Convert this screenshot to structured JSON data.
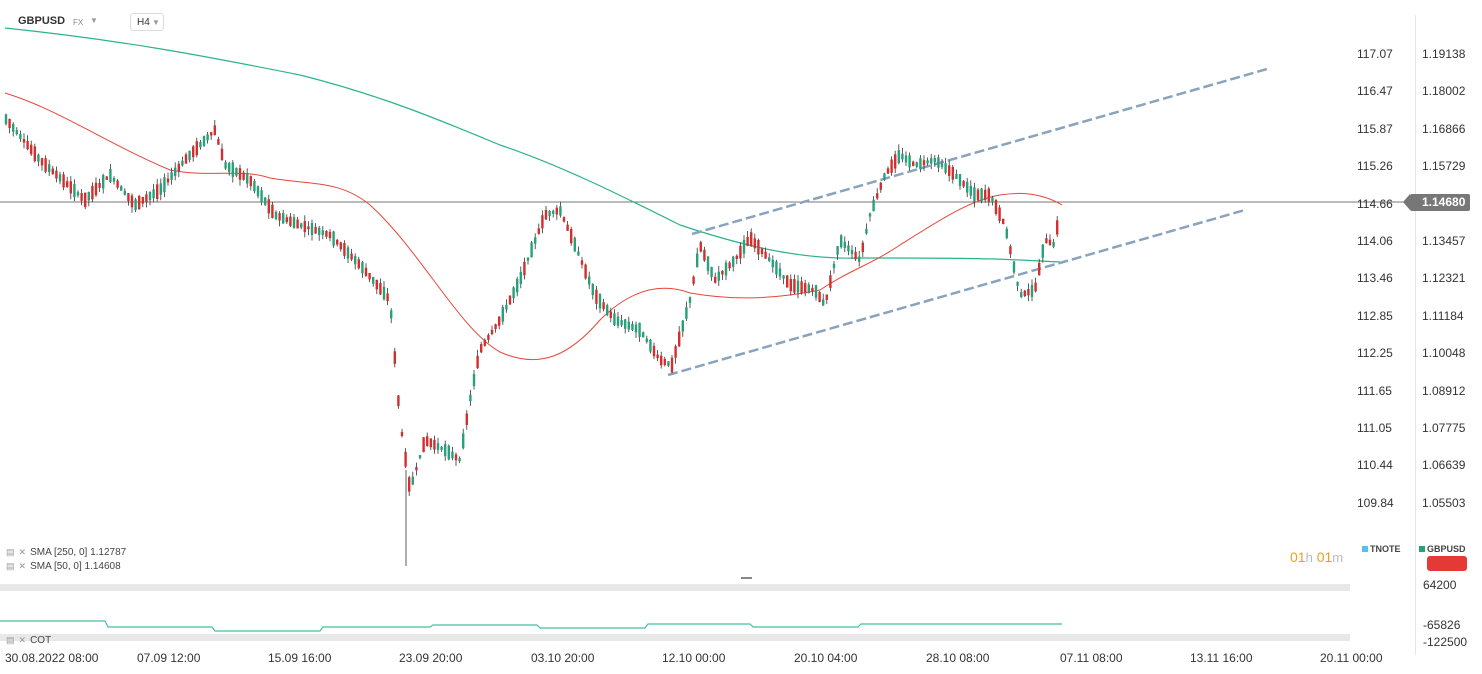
{
  "header": {
    "symbol": "GBPUSD",
    "market": "FX",
    "timeframe": "H4"
  },
  "price_axis_left": [
    "117.07",
    "116.47",
    "115.87",
    "115.26",
    "114.66",
    "114.06",
    "113.46",
    "112.85",
    "112.25",
    "111.65",
    "111.05",
    "110.44",
    "109.84"
  ],
  "price_axis_right": [
    "1.19138",
    "1.18002",
    "1.16866",
    "1.15729",
    "1.14680",
    "1.13457",
    "1.12321",
    "1.11184",
    "1.10048",
    "1.08912",
    "1.07775",
    "1.06639",
    "1.05503"
  ],
  "current_price": "1.14680",
  "indicators": [
    {
      "label": "SMA  [250,  0]  1.12787"
    },
    {
      "label": "SMA  [50,  0]  1.14608"
    }
  ],
  "timer": {
    "hours": "01",
    "h_unit": "h",
    "minutes": "01",
    "m_unit": "m"
  },
  "compare_legend": {
    "tnote": "TNOTE",
    "gbpusd": "GBPUSD"
  },
  "sub_pane": {
    "label": "COT",
    "values": [
      "64200",
      "-65826",
      "-122500"
    ]
  },
  "time_axis": [
    "30.08.2022  08:00",
    "07.09  12:00",
    "15.09  16:00",
    "23.09  20:00",
    "03.10  20:00",
    "12.10  00:00",
    "20.10  04:00",
    "28.10  08:00",
    "07.11  08:00",
    "13.11  16:00",
    "20.11  00:00"
  ],
  "colors": {
    "bull": "#26a17b",
    "bear": "#d32f2f",
    "sma50": "#e5473b",
    "sma250": "#2bb38a",
    "channel": "#6c93b5",
    "cot_line": "#45c0a0",
    "timer": "#e9a01d",
    "tnote": "#4fc3f7",
    "gbpusd_swatch": "#26a17b"
  }
}
